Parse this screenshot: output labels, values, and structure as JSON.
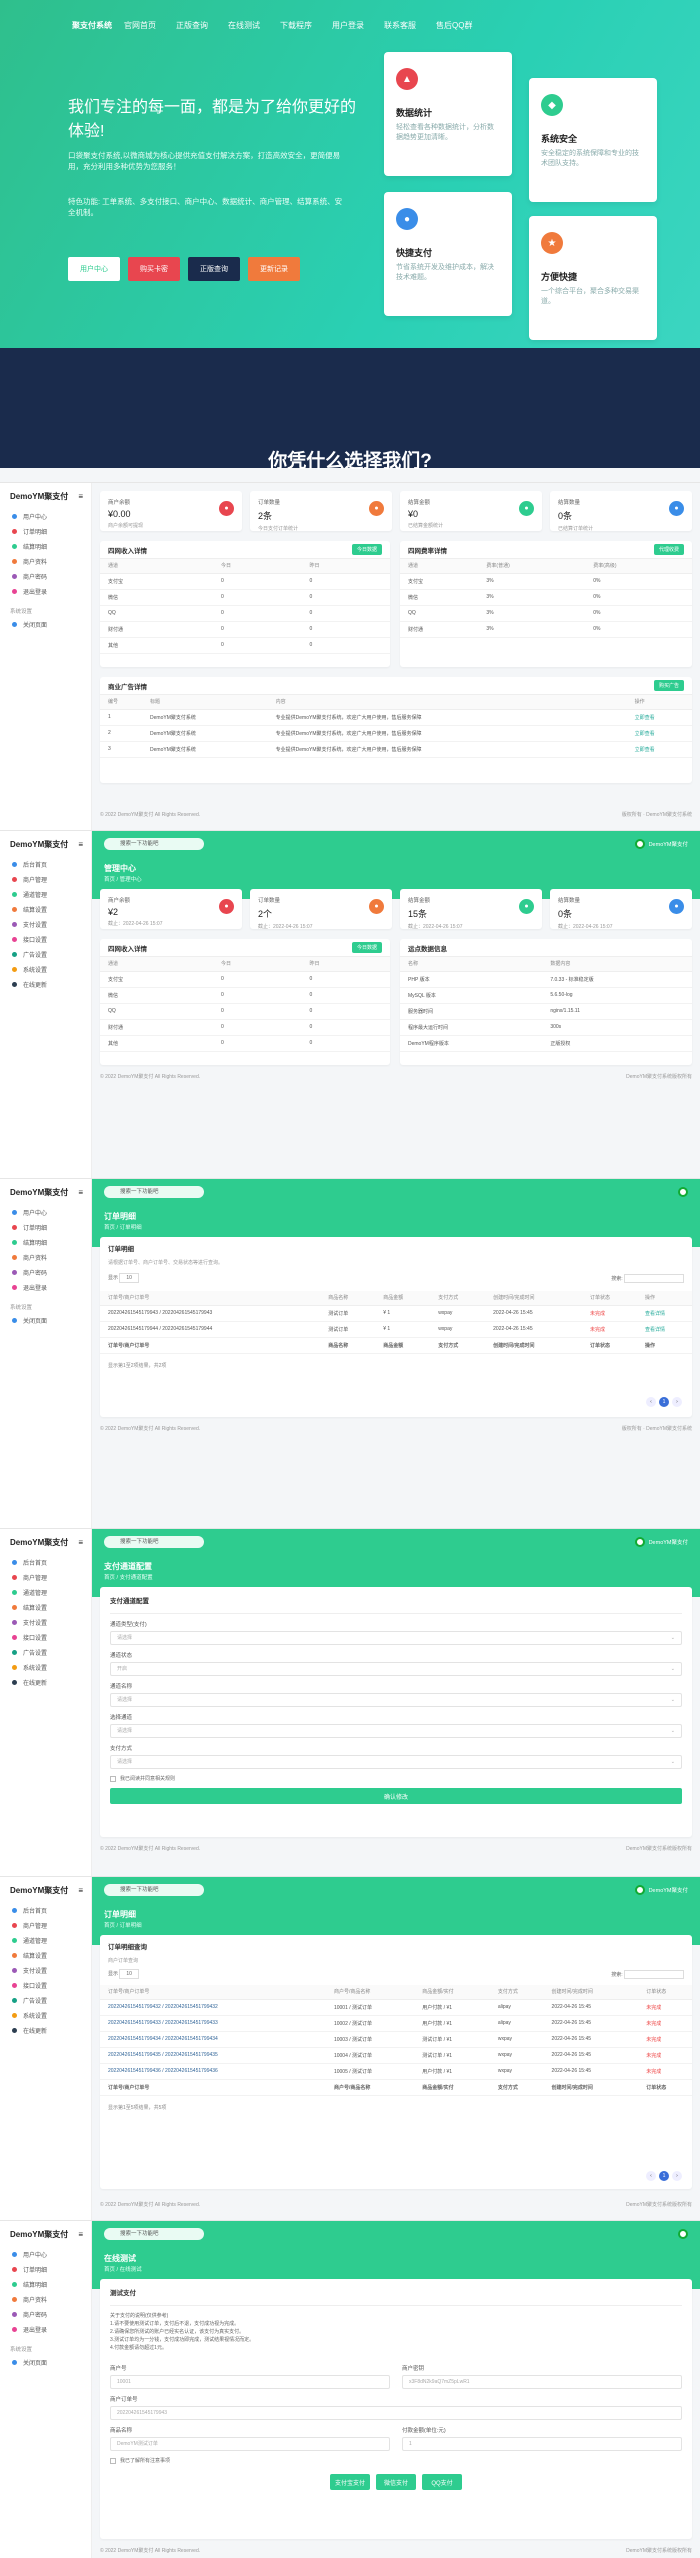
{
  "hero": {
    "nav": [
      "聚支付系统",
      "官网首页",
      "正版查询",
      "在线测试",
      "下载程序",
      "用户登录",
      "联系客服",
      "售后QQ群"
    ],
    "title": "我们专注的每一面，都是为了给你更好的体验!",
    "desc1": "口袋聚支付系统,以微商城为核心提供充值支付解决方案，打造高效安全，更简便易用，充分利用多种优势为您服务！",
    "desc2": "特色功能: 工单系统、多支付接口、商户中心、数据统计、商户管理、结算系统、安全机制。",
    "buttons": [
      {
        "label": "用户中心",
        "color": "#ffffff",
        "text": "#2ecc8f"
      },
      {
        "label": "购买卡密",
        "color": "#e8464f",
        "text": "#ffffff"
      },
      {
        "label": "正版查询",
        "color": "#1a2b4c",
        "text": "#ffffff"
      },
      {
        "label": "更新记录",
        "color": "#f07a3c",
        "text": "#ffffff"
      }
    ],
    "cards": [
      {
        "title": "数据统计",
        "desc": "轻松查看各种数据统计，分析数据趋势更加清晰。",
        "color": "#e8464f",
        "icon": "chart-icon"
      },
      {
        "title": "系统安全",
        "desc": "安全稳定的系统保障和专业的技术团队支持。",
        "color": "#2ecc8f",
        "icon": "shield-icon"
      },
      {
        "title": "快捷支付",
        "desc": "节省系统开发及维护成本，解决技术难题。",
        "color": "#3a8de8",
        "icon": "pay-icon"
      },
      {
        "title": "方便快捷",
        "desc": "一个综合平台，聚合多种交易渠道。",
        "color": "#f07a3c",
        "icon": "bolt-icon"
      }
    ],
    "why_title": "你凭什么选择我们?"
  },
  "brand": "DemoYM聚支付",
  "search_placeholder": "搜索一下功能吧",
  "user": "DemoYM聚支付",
  "sidebar_a": [
    "用户中心",
    "订单明细",
    "结算明细",
    "商户资料",
    "商户密码",
    "退出登录"
  ],
  "sidebar_b": [
    "后台首页",
    "商户管理",
    "通道管理",
    "结算设置",
    "支付设置",
    "接口设置",
    "广告设置",
    "系统设置",
    "在线更新"
  ],
  "sidebar_section": "系统设置",
  "sidebar_section_item": "关闭页面",
  "s1": {
    "stats": [
      {
        "label": "商户余额",
        "value": "¥0.00",
        "sub": "商户余额可提现",
        "color": "#e8464f"
      },
      {
        "label": "订单数量",
        "value": "2条",
        "sub": "今日支付订单统计",
        "color": "#f07a3c"
      },
      {
        "label": "结算金额",
        "value": "¥0",
        "sub": "已结算金额统计",
        "color": "#2ecc8f"
      },
      {
        "label": "结算数量",
        "value": "0条",
        "sub": "已结算订单统计",
        "color": "#3a8de8"
      }
    ],
    "left_title": "四网收入详情",
    "right_title": "四网费率详情",
    "left_btn": "今日数据",
    "right_btn": "代理收费",
    "left_head": [
      "通道",
      "今日",
      "昨日"
    ],
    "right_head": [
      "通道",
      "费率(普通)",
      "费率(高级)"
    ],
    "rows_left": [
      [
        "支付宝",
        "0",
        "0"
      ],
      [
        "微信",
        "0",
        "0"
      ],
      [
        "QQ",
        "0",
        "0"
      ],
      [
        "财付通",
        "0",
        "0"
      ],
      [
        "其他",
        "0",
        "0"
      ]
    ],
    "rows_right": [
      [
        "支付宝",
        "3%",
        "0%"
      ],
      [
        "微信",
        "3%",
        "0%"
      ],
      [
        "QQ",
        "3%",
        "0%"
      ],
      [
        "财付通",
        "3%",
        "0%"
      ]
    ],
    "ads_title": "商业广告详情",
    "ads_btn": "购买广告",
    "ads_head": [
      "编号",
      "标题",
      "内容",
      "操作"
    ],
    "ads_rows": [
      [
        "1",
        "DemoYM聚支付系统",
        "专业提供DemoYM聚支付系统，欢迎广大用户使用，售后服务保障",
        "立即查看"
      ],
      [
        "2",
        "DemoYM聚支付系统",
        "专业提供DemoYM聚支付系统，欢迎广大用户使用，售后服务保障",
        "立即查看"
      ],
      [
        "3",
        "DemoYM聚支付系统",
        "专业提供DemoYM聚支付系统，欢迎广大用户使用，售后服务保障",
        "立即查看"
      ]
    ],
    "footer_l": "© 2022 DemoYM聚支付 All Rights Reserved.",
    "footer_r": "版权所有 · DemoYM聚支付系统"
  },
  "s2": {
    "title": "管理中心",
    "bc": "首页 / 管理中心",
    "stats": [
      {
        "label": "商户余额",
        "value": "¥2",
        "sub": "截止：2022-04-26 15:07",
        "color": "#e8464f"
      },
      {
        "label": "订单数量",
        "value": "2个",
        "sub": "截止：2022-04-26 15:07",
        "color": "#f07a3c"
      },
      {
        "label": "结算金额",
        "value": "15条",
        "sub": "截止：2022-04-26 15:07",
        "color": "#2ecc8f"
      },
      {
        "label": "结算数量",
        "value": "0条",
        "sub": "截止：2022-04-26 15:07",
        "color": "#3a8de8"
      }
    ],
    "left_title": "四网收入详情",
    "left_btn": "今日数据",
    "right_title": "运点数据信息",
    "left_head": [
      "通道",
      "今日",
      "昨日"
    ],
    "rows_left": [
      [
        "支付宝",
        "0",
        "0"
      ],
      [
        "微信",
        "0",
        "0"
      ],
      [
        "QQ",
        "0",
        "0"
      ],
      [
        "财付通",
        "0",
        "0"
      ],
      [
        "其他",
        "0",
        "0"
      ]
    ],
    "right_head": [
      "名称",
      "数据内容"
    ],
    "rows_right": [
      [
        "PHP 版本",
        "7.0.33 - 标准稳定版"
      ],
      [
        "MySQL 版本",
        "5.6.50-log"
      ],
      [
        "服务器时间",
        "nginx/1.15.11"
      ],
      [
        "程序最大运行时间",
        "300s"
      ],
      [
        "DemoYM程序版本",
        "正版授权"
      ]
    ],
    "footer_l": "© 2022 DemoYM聚支付 All Rights Reserved.",
    "footer_r": "DemoYM聚支付系统版权所有"
  },
  "s3": {
    "title": "订单明细",
    "bc": "首页 / 订单明细",
    "panel_title": "订单明细",
    "panel_desc": "请根据订单号、商户订单号、交易状态等进行查询。",
    "show": "显示",
    "show_n": "10",
    "search_label": "搜索:",
    "head": [
      "订单号/商户订单号",
      "商品名称",
      "商品金额",
      "支付方式",
      "创建时间/完成时间",
      "订单状态",
      "操作"
    ],
    "rows": [
      [
        "202204261545179943 / 202204261545179943",
        "测试订单",
        "¥ 1",
        "wxpay",
        "2022-04-26 15:45",
        "未完成",
        "查看详情"
      ],
      [
        "202204261545179944 / 202204261545179944",
        "测试订单",
        "¥ 1",
        "wxpay",
        "2022-04-26 15:45",
        "未完成",
        "查看详情"
      ]
    ],
    "foot_row": [
      "订单号/商户订单号",
      "商品名称",
      "商品金额",
      "支付方式",
      "创建时间/完成时间",
      "订单状态",
      "操作"
    ],
    "info": "显示第1至2项结果，共2项",
    "footer_l": "© 2022 DemoYM聚支付 All Rights Reserved.",
    "footer_r": "版权所有 · DemoYM聚支付系统"
  },
  "s4": {
    "title": "支付通道配置",
    "bc": "首页 / 支付通道配置",
    "panel_title": "支付通道配置",
    "fields": [
      {
        "label": "通道类型(支付)",
        "value": "请选择"
      },
      {
        "label": "通道状态",
        "value": "开启"
      },
      {
        "label": "通道名称",
        "value": "请选择"
      },
      {
        "label": "选择通道",
        "value": "请选择"
      },
      {
        "label": "支付方式",
        "value": "请选择"
      }
    ],
    "check": "我已阅读并同意相关规则",
    "submit": "确认修改",
    "footer_l": "© 2022 DemoYM聚支付 All Rights Reserved.",
    "footer_r": "DemoYM聚支付系统版权所有"
  },
  "s5": {
    "title": "订单明细",
    "bc": "首页 / 订单明细",
    "panel_title": "订单明细查询",
    "panel_desc": "商户订单查询",
    "show": "显示",
    "show_n": "10",
    "search_label": "搜索:",
    "head": [
      "订单号/商户订单号",
      "商户号/商品名称",
      "商品金额/实付",
      "支付方式",
      "创建时间/完成时间",
      "订单状态"
    ],
    "rows": [
      [
        "2022042615451799432 / 2022042615451799432",
        "10001 / 测试订单",
        "用户付款 / ¥1",
        "alipay",
        "2022-04-26 15:45",
        "未完成"
      ],
      [
        "2022042615451799433 / 2022042615451799433",
        "10002 / 测试订单",
        "用户付款 / ¥1",
        "alipay",
        "2022-04-26 15:45",
        "未完成"
      ],
      [
        "2022042615451799434 / 2022042615451799434",
        "10003 / 测试订单",
        "测试订单 / ¥1",
        "wxpay",
        "2022-04-26 15:45",
        "未完成"
      ],
      [
        "2022042615451799435 / 2022042615451799435",
        "10004 / 测试订单",
        "测试订单 / ¥1",
        "wxpay",
        "2022-04-26 15:45",
        "未完成"
      ],
      [
        "2022042615451799436 / 2022042615451799436",
        "10005 / 测试订单",
        "用户付款 / ¥1",
        "wxpay",
        "2022-04-26 15:45",
        "未完成"
      ]
    ],
    "foot_row": [
      "订单号/商户订单号",
      "商户号/商品名称",
      "商品金额/实付",
      "支付方式",
      "创建时间/完成时间",
      "订单状态"
    ],
    "info": "显示第1至5项结果，共5项",
    "footer_l": "© 2022 DemoYM聚支付 All Rights Reserved.",
    "footer_r": "DemoYM聚支付系统版权所有"
  },
  "s6": {
    "title": "在线测试",
    "bc": "首页 / 在线测试",
    "panel_title": "测试支付",
    "notes": [
      "关于支付的说明(仅供参考)",
      "1.请不要使用测试订单，支付后不退，支付成功视为完成。",
      "2.请确保您所测试的账户已经实名认证，该支付为真实支付。",
      "3.测试订单均为一分钱，支付成功即完成，测试结果视情况而定。",
      "4.付款金额请勿超过1元。"
    ],
    "f1": {
      "label": "商户号",
      "value": "10001"
    },
    "f2": {
      "label": "商户密钥",
      "value": "x3F8dN2k9aQ7mZ5pLwR1"
    },
    "f3": {
      "label": "商户订单号",
      "value": "202204261545179943"
    },
    "f4": {
      "label": "商品名称",
      "value": "DemoYM测试订单"
    },
    "f5": {
      "label": "付款金额(单位:元)",
      "value": "1"
    },
    "check": "我已了解所有注意事项",
    "btns": [
      "支付宝支付",
      "微信支付",
      "QQ支付"
    ],
    "footer_l": "© 2022 DemoYM聚支付 All Rights Reserved.",
    "footer_r": "DemoYM聚支付系统版权所有"
  }
}
